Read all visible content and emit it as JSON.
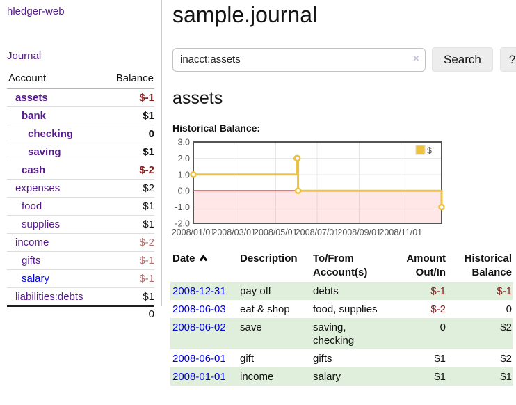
{
  "colors": {
    "accent_purple": "#551a8b",
    "link_blue": "#0000e6",
    "negative_strong": "#8b1d1d",
    "negative_soft": "#b06c6c",
    "row_green": "#e0efdb",
    "series_gold": "#edc240",
    "zero_line_red": "#990000",
    "grid_border": "#545454"
  },
  "sidebar": {
    "brand": "hledger-web",
    "journal_link": "Journal",
    "accounts_table": {
      "header_account": "Account",
      "header_balance": "Balance",
      "rows": [
        {
          "name": "assets",
          "indent": 0,
          "bold": true,
          "balance": "$-1",
          "balance_class": "neg-strong"
        },
        {
          "name": "bank",
          "indent": 1,
          "bold": true,
          "balance": "$1",
          "balance_class": ""
        },
        {
          "name": "checking",
          "indent": 2,
          "bold": true,
          "balance": "0",
          "balance_class": ""
        },
        {
          "name": "saving",
          "indent": 2,
          "bold": true,
          "balance": "$1",
          "balance_class": ""
        },
        {
          "name": "cash",
          "indent": 1,
          "bold": true,
          "balance": "$-2",
          "balance_class": "neg-strong"
        },
        {
          "name": "expenses",
          "indent": 0,
          "bold": false,
          "balance": "$2",
          "balance_class": ""
        },
        {
          "name": "food",
          "indent": 1,
          "bold": false,
          "balance": "$1",
          "balance_class": ""
        },
        {
          "name": "supplies",
          "indent": 1,
          "bold": false,
          "balance": "$1",
          "balance_class": ""
        },
        {
          "name": "income",
          "indent": 0,
          "bold": false,
          "balance": "$-2",
          "balance_class": "neg-soft"
        },
        {
          "name": "gifts",
          "indent": 1,
          "bold": false,
          "balance": "$-1",
          "balance_class": "neg-soft"
        },
        {
          "name": "salary",
          "indent": 1,
          "bold": false,
          "unvisited": true,
          "balance": "$-1",
          "balance_class": "neg-soft"
        },
        {
          "name": "liabilities:debts",
          "indent": 0,
          "bold": false,
          "balance": "$1",
          "balance_class": ""
        }
      ],
      "total": "0"
    }
  },
  "header": {
    "title": "sample.journal"
  },
  "search": {
    "value": "inacct:assets",
    "clear_icon": "×",
    "button_label": "Search",
    "help_label": "?"
  },
  "account_page": {
    "heading": "assets",
    "chart_label": "Historical Balance:"
  },
  "chart_data": {
    "type": "line",
    "step": true,
    "title": "Historical Balance",
    "series": [
      {
        "name": "$",
        "color": "#edc240",
        "points": [
          [
            "2008-01-01",
            1
          ],
          [
            "2008-06-01",
            2
          ],
          [
            "2008-06-02",
            2
          ],
          [
            "2008-06-03",
            0
          ],
          [
            "2008-12-31",
            -1
          ]
        ]
      }
    ],
    "x_range": [
      "2008-01-01",
      "2008-12-31"
    ],
    "x_ticks": [
      {
        "date": "2008-01-01",
        "label": "2008/01/01"
      },
      {
        "date": "2008-03-01",
        "label": "2008/03/01"
      },
      {
        "date": "2008-05-01",
        "label": "2008/05/01"
      },
      {
        "date": "2008-07-01",
        "label": "2008/07/01"
      },
      {
        "date": "2008-09-01",
        "label": "2008/09/01"
      },
      {
        "date": "2008-11-01",
        "label": "2008/11/01"
      }
    ],
    "y_ticks": [
      3,
      2,
      1,
      0,
      -1,
      -2
    ],
    "ylim": [
      -2,
      3
    ],
    "legend": {
      "label": "$",
      "position": "top-right"
    },
    "negative_region": true,
    "grid": true
  },
  "register_table": {
    "headers": {
      "date": "Date",
      "description": "Description",
      "accounts": "To/From Account(s)",
      "amount": "Amount Out/In",
      "balance": "Historical Balance"
    },
    "sort": {
      "column": "date",
      "direction": "ascending"
    },
    "rows": [
      {
        "date": "2008-12-31",
        "description": "pay off",
        "accounts": [
          "debts"
        ],
        "amount": "$-1",
        "balance": "$-1"
      },
      {
        "date": "2008-06-03",
        "description": "eat & shop",
        "accounts": [
          "food, supplies"
        ],
        "amount": "$-2",
        "balance": "0"
      },
      {
        "date": "2008-06-02",
        "description": "save",
        "accounts": [
          "saving,",
          "checking"
        ],
        "amount": "0",
        "balance": "$2"
      },
      {
        "date": "2008-06-01",
        "description": "gift",
        "accounts": [
          "gifts"
        ],
        "amount": "$1",
        "balance": "$2"
      },
      {
        "date": "2008-01-01",
        "description": "income",
        "accounts": [
          "salary"
        ],
        "amount": "$1",
        "balance": "$1"
      }
    ]
  }
}
